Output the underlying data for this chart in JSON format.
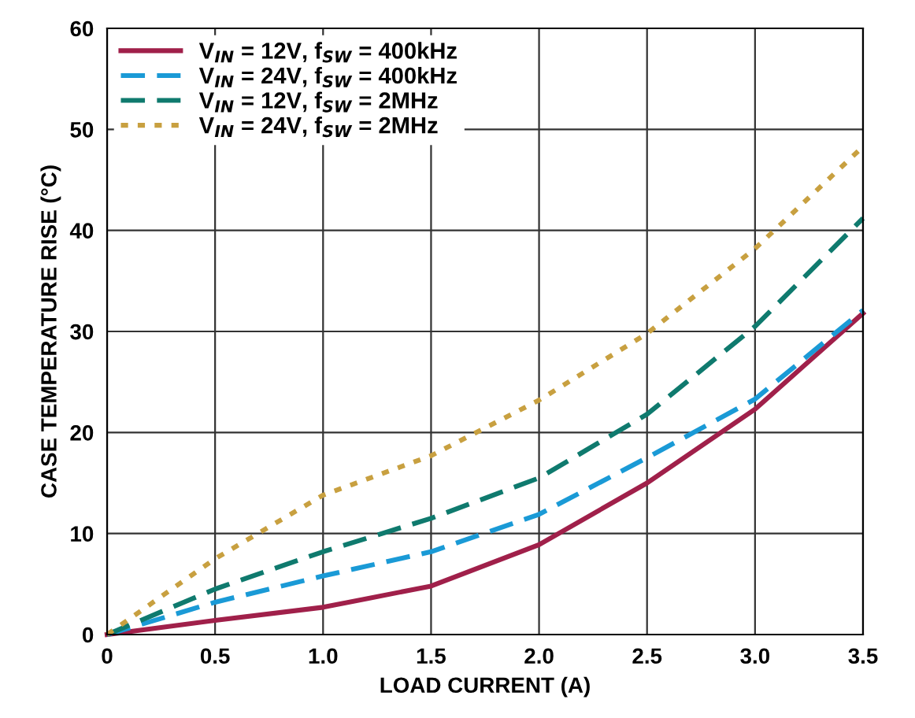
{
  "chart_data": {
    "type": "line",
    "xlabel": "LOAD CURRENT (A)",
    "ylabel": "CASE TEMPERATURE RISE (°C)",
    "x": [
      0,
      0.5,
      1.0,
      1.5,
      2.0,
      2.5,
      3.0,
      3.5
    ],
    "series": [
      {
        "name": "V$_{IN}$ = 12V, f$_{SW}$ = 400kHz",
        "color": "#a0204a",
        "line_style": "solid",
        "values": [
          0,
          1.4,
          2.7,
          4.8,
          8.9,
          15.0,
          22.3,
          31.8
        ]
      },
      {
        "name": "V$_{IN}$ = 24V, f$_{SW}$ = 400kHz",
        "color": "#1a9ad6",
        "line_style": "dashed",
        "values": [
          0,
          3.2,
          5.8,
          8.2,
          11.9,
          17.5,
          23.3,
          32.1
        ]
      },
      {
        "name": "V$_{IN}$ = 12V, f$_{SW}$ = 2MHz",
        "color": "#0f7a6e",
        "line_style": "dashed",
        "values": [
          0,
          4.5,
          8.2,
          11.5,
          15.5,
          21.8,
          30.5,
          41.2
        ]
      },
      {
        "name": "V$_{IN}$ = 24V, f$_{SW}$ = 2MHz",
        "color": "#c8a040",
        "line_style": "dotted",
        "values": [
          0,
          7.5,
          13.8,
          17.7,
          23.2,
          29.8,
          38.2,
          48.3
        ]
      }
    ],
    "xlim": [
      0,
      3.5
    ],
    "xticks": [
      0,
      0.5,
      {
        "value": 1,
        "label": "1.0"
      },
      1.5,
      {
        "value": 2,
        "label": "2.0"
      },
      2.5,
      {
        "value": 3,
        "label": "3.0"
      },
      3.5
    ],
    "ylim": [
      0,
      60
    ],
    "yticks": [
      0,
      10,
      20,
      30,
      40,
      50,
      60
    ],
    "grid": true,
    "legend": "top left",
    "marker": "none"
  }
}
